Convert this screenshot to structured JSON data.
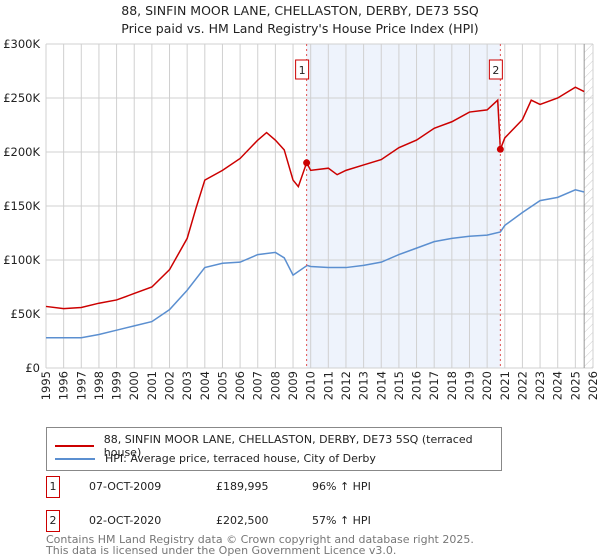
{
  "chart_data": {
    "type": "line",
    "title": "88, SINFIN MOOR LANE, CHELLASTON, DERBY, DE73 5SQ",
    "subtitle": "Price paid vs. HM Land Registry's House Price Index (HPI)",
    "xlim": [
      1995,
      2026
    ],
    "ylim": [
      0,
      300000
    ],
    "y_ticks": [
      {
        "v": 0,
        "l": "£0"
      },
      {
        "v": 50000,
        "l": "£50K"
      },
      {
        "v": 100000,
        "l": "£100K"
      },
      {
        "v": 150000,
        "l": "£150K"
      },
      {
        "v": 200000,
        "l": "£200K"
      },
      {
        "v": 250000,
        "l": "£250K"
      },
      {
        "v": 300000,
        "l": "£300K"
      }
    ],
    "x_ticks": [
      "1995",
      "1996",
      "1997",
      "1998",
      "1999",
      "2000",
      "2001",
      "2002",
      "2003",
      "2004",
      "2005",
      "2006",
      "2007",
      "2008",
      "2009",
      "2010",
      "2011",
      "2012",
      "2013",
      "2014",
      "2015",
      "2016",
      "2017",
      "2018",
      "2019",
      "2020",
      "2021",
      "2022",
      "2023",
      "2024",
      "2025",
      "2026"
    ],
    "series": [
      {
        "name": "88, SINFIN MOOR LANE, CHELLASTON, DERBY, DE73 5SQ (terraced house)",
        "color": "#cc0000",
        "x": [
          1995,
          1996,
          1997,
          1998,
          1999,
          2000,
          2001,
          2002,
          2003,
          2003.5,
          2004,
          2005,
          2006,
          2007,
          2007.5,
          2008,
          2008.5,
          2009,
          2009.3,
          2009.77,
          2010,
          2011,
          2011.5,
          2012,
          2013,
          2014,
          2015,
          2016,
          2017,
          2018,
          2019,
          2020,
          2020.6,
          2020.75,
          2021,
          2022,
          2022.5,
          2023,
          2024,
          2025,
          2025.5
        ],
        "y": [
          57000,
          55000,
          56000,
          60000,
          63000,
          69000,
          75000,
          91000,
          120000,
          148000,
          174000,
          183000,
          194000,
          211000,
          218000,
          211000,
          202000,
          174000,
          168000,
          189995,
          183000,
          185000,
          179000,
          183000,
          188000,
          193000,
          204000,
          211000,
          222000,
          228000,
          237000,
          239000,
          248000,
          202500,
          213000,
          230000,
          248000,
          244000,
          250000,
          260000,
          256000
        ]
      },
      {
        "name": "HPI: Average price, terraced house, City of Derby",
        "color": "#5b8fd0",
        "x": [
          1995,
          1997,
          1998,
          1999,
          2000,
          2001,
          2002,
          2003,
          2004,
          2005,
          2006,
          2007,
          2008,
          2008.5,
          2009,
          2009.8,
          2010,
          2011,
          2012,
          2013,
          2014,
          2015,
          2016,
          2017,
          2018,
          2019,
          2020,
          2020.75,
          2021,
          2022,
          2023,
          2024,
          2025,
          2025.5
        ],
        "y": [
          28000,
          28000,
          31000,
          35000,
          39000,
          43000,
          54000,
          72000,
          93000,
          97000,
          98000,
          105000,
          107000,
          102000,
          86000,
          95000,
          94000,
          93000,
          93000,
          95000,
          98000,
          105000,
          111000,
          117000,
          120000,
          122000,
          123000,
          126000,
          132000,
          144000,
          155000,
          158000,
          165000,
          163000
        ]
      }
    ],
    "annotations": [
      {
        "label": "1",
        "x": 2009.77,
        "y": 189995
      },
      {
        "label": "2",
        "x": 2020.75,
        "y": 202500
      }
    ],
    "shaded_range": [
      2009.77,
      2020.75
    ],
    "hatched_from": 2025.5,
    "grid": true
  },
  "legend": [
    "88, SINFIN MOOR LANE, CHELLASTON, DERBY, DE73 5SQ (terraced house)",
    "HPI: Average price, terraced house, City of Derby"
  ],
  "sales": [
    {
      "n": "1",
      "date": "07-OCT-2009",
      "price": "£189,995",
      "hpi": "96% ↑ HPI"
    },
    {
      "n": "2",
      "date": "02-OCT-2020",
      "price": "£202,500",
      "hpi": "57% ↑ HPI"
    }
  ],
  "footer": [
    "Contains HM Land Registry data © Crown copyright and database right 2025.",
    "This data is licensed under the Open Government Licence v3.0."
  ]
}
